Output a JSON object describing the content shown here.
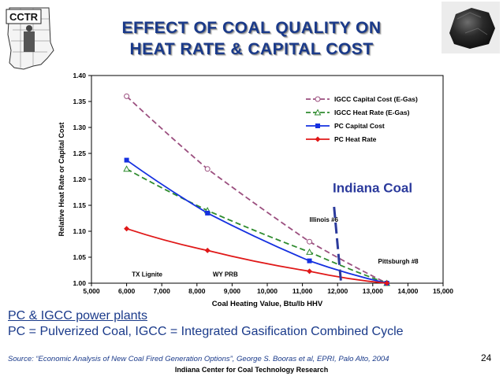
{
  "header": {
    "title_line1": "EFFECT OF COAL QUALITY ON",
    "title_line2": "HEAT RATE & CAPITAL COST",
    "logo_text": "CCTR"
  },
  "chart_data": {
    "type": "line",
    "xlabel": "Coal Heating Value, Btu/lb HHV",
    "ylabel": "Relative Heat Rate or Capital Cost",
    "xlim": [
      5000,
      15000
    ],
    "ylim": [
      1.0,
      1.4
    ],
    "x_ticks": [
      "5,000",
      "6,000",
      "7,000",
      "8,000",
      "9,000",
      "10,000",
      "11,000",
      "12,000",
      "13,000",
      "14,000",
      "15,000"
    ],
    "y_ticks": [
      "1.00",
      "1.05",
      "1.10",
      "1.15",
      "1.20",
      "1.25",
      "1.30",
      "1.35",
      "1.40"
    ],
    "legend_position": "top-right",
    "series": [
      {
        "name": "IGCC Capital Cost (E-Gas)",
        "color": "#9b4f7f",
        "style": "dashed",
        "marker": "circle-open",
        "x": [
          6000,
          8300,
          11200,
          13400
        ],
        "y": [
          1.36,
          1.22,
          1.08,
          1.0
        ]
      },
      {
        "name": "IGCC Heat Rate (E-Gas)",
        "color": "#2e8b2e",
        "style": "dashed",
        "marker": "triangle-open",
        "x": [
          6000,
          8300,
          11200,
          13400
        ],
        "y": [
          1.22,
          1.14,
          1.06,
          1.0
        ]
      },
      {
        "name": "PC Capital Cost",
        "color": "#1530e0",
        "style": "solid",
        "marker": "square",
        "x": [
          6000,
          8300,
          11200,
          13400
        ],
        "y": [
          1.237,
          1.135,
          1.043,
          1.0
        ]
      },
      {
        "name": "PC Heat Rate",
        "color": "#e01818",
        "style": "solid",
        "marker": "diamond",
        "x": [
          6000,
          8300,
          11200,
          13400
        ],
        "y": [
          1.105,
          1.063,
          1.023,
          1.0
        ]
      }
    ],
    "annotations": [
      {
        "text": "TX Lignite",
        "x": 6150,
        "y": 1.013
      },
      {
        "text": "WY PRB",
        "x": 8450,
        "y": 1.013
      },
      {
        "text": "Illinois #6",
        "x": 11200,
        "y": 1.118
      },
      {
        "text": "Pittsburgh #8",
        "x": 13150,
        "y": 1.038
      }
    ],
    "callout": {
      "text": "Indiana Coal",
      "color": "#2b3a9c",
      "x_top": 11900,
      "y_top": 1.15,
      "x_bottom": 12100,
      "y_bottom": 1.0
    }
  },
  "footer": {
    "heading": "PC & IGCC power plants",
    "definition": "PC = Pulverized Coal,  IGCC = Integrated Gasification Combined Cycle",
    "source": "Source: “Economic Analysis of New Coal Fired Generation Options”, George S. Booras et al, EPRI, Palo Alto, 2004",
    "page_number": "24",
    "center_name": "Indiana Center for Coal Technology Research"
  },
  "colors": {
    "title": "#1a3a8a",
    "footer_text": "#1a3a8a",
    "plot_border": "#000000"
  }
}
